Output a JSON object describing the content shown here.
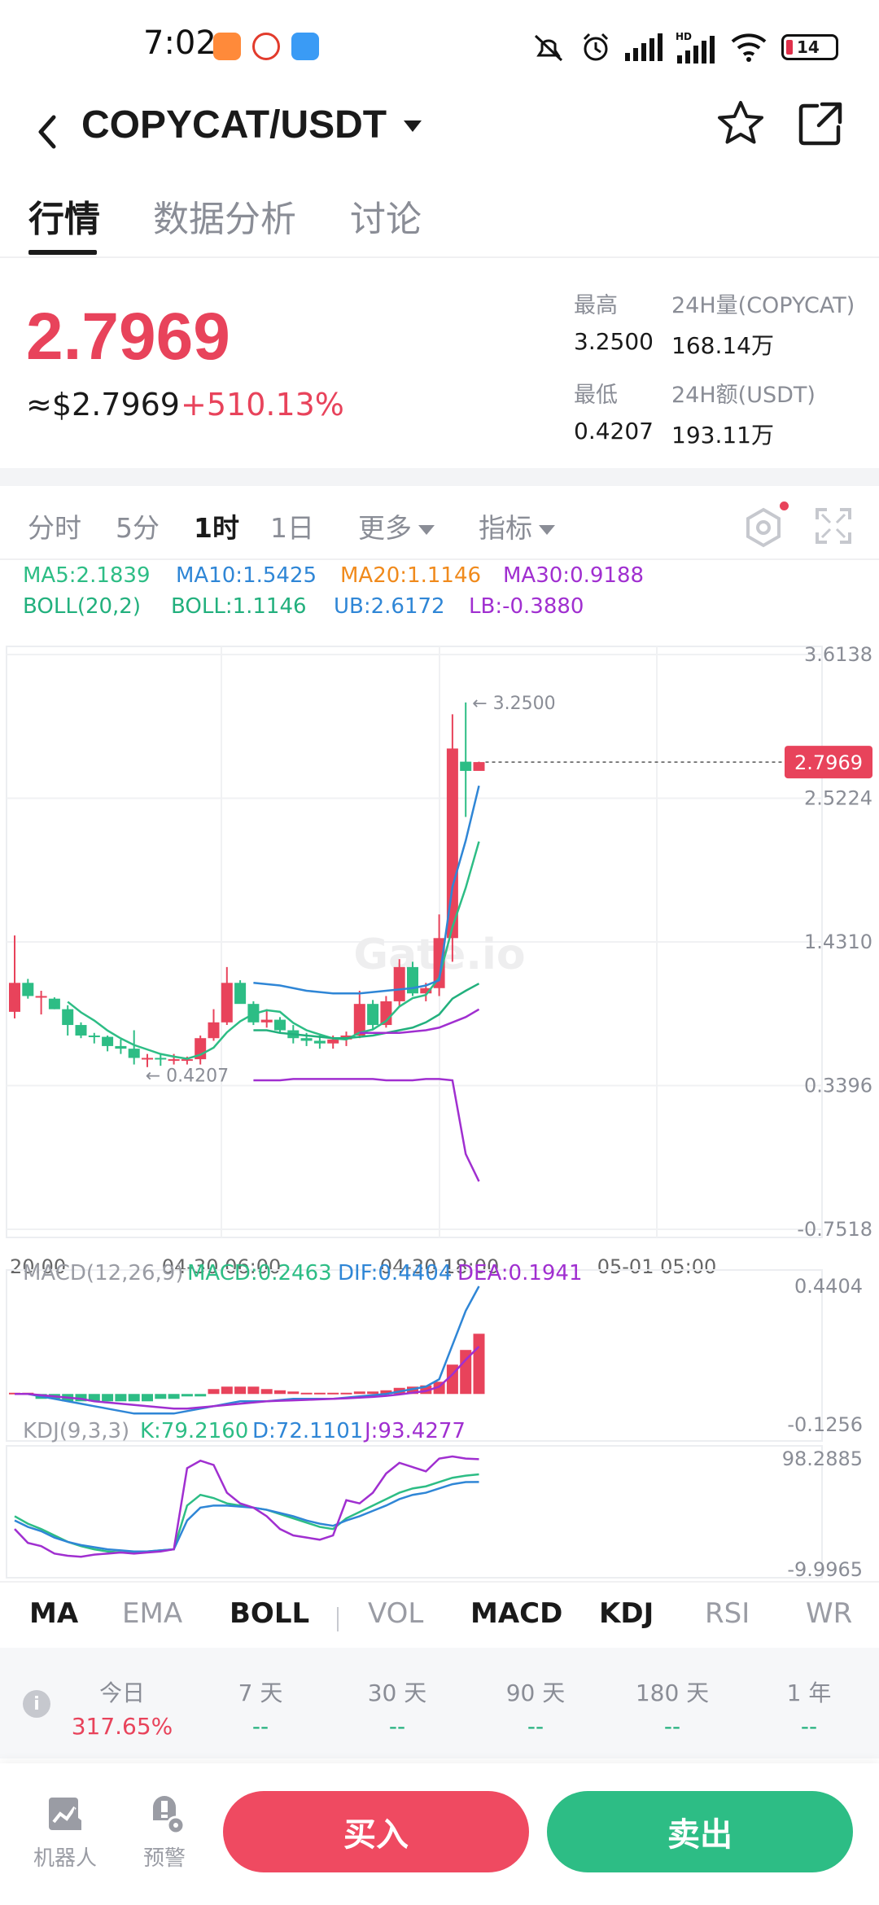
{
  "status_bar": {
    "time": "7:02",
    "battery": "14",
    "network": "HD"
  },
  "header": {
    "pair": "COPYCAT/USDT"
  },
  "tabs": [
    "行情",
    "数据分析",
    "讨论"
  ],
  "summary": {
    "last_price": "2.7969",
    "usd_price": "≈$2.7969",
    "change_pct": "+510.13%",
    "high_label": "最高",
    "high_value": "3.2500",
    "low_label": "最低",
    "low_value": "0.4207",
    "vol_label": "24H量(COPYCAT)",
    "vol_value": "168.14万",
    "amt_label": "24H额(USDT)",
    "amt_value": "193.11万"
  },
  "intervals": {
    "items": [
      "分时",
      "5分",
      "1时",
      "1日"
    ],
    "active": "1时",
    "more": "更多",
    "indicators": "指标"
  },
  "legends": {
    "ma": [
      "MA5:2.1839",
      "MA10:1.5425",
      "MA20:1.1146",
      "MA30:0.9188"
    ],
    "boll": [
      "BOLL(20,2)",
      "BOLL:1.1146",
      "UB:2.6172",
      "LB:-0.3880"
    ],
    "macd": [
      "MACD(12,26,9)",
      "MACD:0.2463",
      "DIF:0.4404",
      "DEA:0.1941"
    ],
    "kdj": [
      "KDJ(9,3,3)",
      "K:79.2160",
      "D:72.1101",
      "J:93.4277"
    ]
  },
  "colors": {
    "up": "#e8435b",
    "down": "#2dbd85",
    "ma5": "#2dbd85",
    "ma10": "#2f86d6",
    "ma20": "#f08a1c",
    "ma30": "#a02fd0",
    "boll": "#22b07d",
    "ub": "#2f86d6",
    "lb": "#a02fd0"
  },
  "chart_data": [
    {
      "type": "candlestick",
      "title": "",
      "watermark": "Gate.io",
      "price_axis_labels": [
        "3.6138",
        "2.5224",
        "1.4310",
        "0.3396",
        "-0.7518"
      ],
      "ylim": [
        -0.7518,
        3.6138
      ],
      "time_labels": [
        "20:00",
        "04-30 06:00",
        "04-30 18:00",
        "05-01 05:00"
      ],
      "current_price_tag": "2.7969",
      "high_marker": "← 3.2500",
      "low_marker": "← 0.4207",
      "candles": [
        {
          "o": 0.9,
          "h": 1.48,
          "l": 0.85,
          "c": 1.12
        },
        {
          "o": 1.12,
          "h": 1.15,
          "l": 1.0,
          "c": 1.02
        },
        {
          "o": 1.02,
          "h": 1.06,
          "l": 0.88,
          "c": 1.02
        },
        {
          "o": 1.0,
          "h": 1.01,
          "l": 0.92,
          "c": 0.92
        },
        {
          "o": 0.92,
          "h": 0.95,
          "l": 0.72,
          "c": 0.8
        },
        {
          "o": 0.8,
          "h": 0.82,
          "l": 0.7,
          "c": 0.72
        },
        {
          "o": 0.72,
          "h": 0.74,
          "l": 0.66,
          "c": 0.71
        },
        {
          "o": 0.71,
          "h": 0.72,
          "l": 0.6,
          "c": 0.64
        },
        {
          "o": 0.64,
          "h": 0.69,
          "l": 0.58,
          "c": 0.62
        },
        {
          "o": 0.62,
          "h": 0.76,
          "l": 0.5,
          "c": 0.55
        },
        {
          "o": 0.55,
          "h": 0.58,
          "l": 0.48,
          "c": 0.55
        },
        {
          "o": 0.55,
          "h": 0.58,
          "l": 0.49,
          "c": 0.54
        },
        {
          "o": 0.54,
          "h": 0.58,
          "l": 0.5,
          "c": 0.54
        },
        {
          "o": 0.54,
          "h": 0.56,
          "l": 0.5,
          "c": 0.54
        },
        {
          "o": 0.54,
          "h": 0.72,
          "l": 0.5,
          "c": 0.7
        },
        {
          "o": 0.7,
          "h": 0.92,
          "l": 0.68,
          "c": 0.82
        },
        {
          "o": 0.82,
          "h": 1.24,
          "l": 0.8,
          "c": 1.12
        },
        {
          "o": 1.12,
          "h": 1.14,
          "l": 1.0,
          "c": 0.96
        },
        {
          "o": 0.96,
          "h": 0.98,
          "l": 0.8,
          "c": 0.82
        },
        {
          "o": 0.82,
          "h": 0.92,
          "l": 0.78,
          "c": 0.84
        },
        {
          "o": 0.84,
          "h": 0.86,
          "l": 0.74,
          "c": 0.76
        },
        {
          "o": 0.76,
          "h": 0.8,
          "l": 0.66,
          "c": 0.7
        },
        {
          "o": 0.7,
          "h": 0.74,
          "l": 0.64,
          "c": 0.68
        },
        {
          "o": 0.68,
          "h": 0.72,
          "l": 0.62,
          "c": 0.66
        },
        {
          "o": 0.66,
          "h": 0.72,
          "l": 0.62,
          "c": 0.69
        },
        {
          "o": 0.69,
          "h": 0.75,
          "l": 0.64,
          "c": 0.72
        },
        {
          "o": 0.72,
          "h": 1.06,
          "l": 0.7,
          "c": 0.96
        },
        {
          "o": 0.96,
          "h": 0.99,
          "l": 0.76,
          "c": 0.8
        },
        {
          "o": 0.8,
          "h": 1.02,
          "l": 0.78,
          "c": 0.98
        },
        {
          "o": 0.98,
          "h": 1.3,
          "l": 0.94,
          "c": 1.24
        },
        {
          "o": 1.24,
          "h": 1.28,
          "l": 1.02,
          "c": 1.04
        },
        {
          "o": 1.04,
          "h": 1.12,
          "l": 0.98,
          "c": 1.08
        },
        {
          "o": 1.08,
          "h": 1.64,
          "l": 1.02,
          "c": 1.46
        },
        {
          "o": 1.46,
          "h": 3.16,
          "l": 1.28,
          "c": 2.9
        },
        {
          "o": 2.8,
          "h": 3.25,
          "l": 2.38,
          "c": 2.73
        },
        {
          "o": 2.73,
          "h": 2.8,
          "l": 2.76,
          "c": 2.7969
        }
      ],
      "boll_start_index": 18,
      "ub": [
        1.12,
        1.11,
        1.1,
        1.08,
        1.06,
        1.05,
        1.04,
        1.04,
        1.04,
        1.05,
        1.06,
        1.07,
        1.08,
        1.1,
        1.14,
        1.85,
        2.2,
        2.6172
      ],
      "lb": [
        0.38,
        0.38,
        0.38,
        0.39,
        0.39,
        0.39,
        0.39,
        0.39,
        0.39,
        0.39,
        0.38,
        0.38,
        0.38,
        0.39,
        0.39,
        0.38,
        -0.18,
        -0.388
      ],
      "boll": [
        0.76,
        0.76,
        0.74,
        0.73,
        0.72,
        0.71,
        0.7,
        0.7,
        0.71,
        0.72,
        0.74,
        0.76,
        0.78,
        0.82,
        0.88,
        1.0,
        1.06,
        1.1146
      ],
      "ma30": [
        0.74,
        0.74,
        0.74,
        0.74,
        0.75,
        0.76,
        0.78,
        0.82,
        0.86,
        0.9188
      ]
    },
    {
      "type": "bar",
      "title": "",
      "axis_labels": [
        "0.4404",
        "-0.1256"
      ],
      "ylim": [
        -0.1256,
        0.4404
      ],
      "macd": [
        0.005,
        0.005,
        -0.02,
        -0.02,
        -0.03,
        -0.03,
        -0.03,
        -0.03,
        -0.03,
        -0.03,
        -0.03,
        -0.02,
        -0.02,
        -0.01,
        -0.01,
        0.02,
        0.03,
        0.03,
        0.03,
        0.02,
        0.015,
        0.01,
        0.005,
        0.005,
        0.005,
        0.005,
        0.01,
        0.01,
        0.015,
        0.025,
        0.03,
        0.035,
        0.05,
        0.12,
        0.18,
        0.2463
      ],
      "dif": [
        0.0,
        0.0,
        -0.01,
        -0.02,
        -0.03,
        -0.04,
        -0.05,
        -0.06,
        -0.07,
        -0.08,
        -0.08,
        -0.08,
        -0.08,
        -0.07,
        -0.06,
        -0.05,
        -0.04,
        -0.03,
        -0.03,
        -0.03,
        -0.025,
        -0.02,
        -0.02,
        -0.02,
        -0.02,
        -0.015,
        -0.01,
        -0.005,
        0.0,
        0.01,
        0.02,
        0.03,
        0.06,
        0.2,
        0.34,
        0.4404
      ],
      "dea": [
        0.0,
        0.0,
        -0.005,
        -0.01,
        -0.015,
        -0.02,
        -0.03,
        -0.035,
        -0.04,
        -0.045,
        -0.05,
        -0.055,
        -0.06,
        -0.06,
        -0.055,
        -0.05,
        -0.045,
        -0.04,
        -0.035,
        -0.03,
        -0.028,
        -0.026,
        -0.024,
        -0.022,
        -0.02,
        -0.018,
        -0.015,
        -0.012,
        -0.008,
        -0.002,
        0.005,
        0.012,
        0.03,
        0.08,
        0.14,
        0.1941
      ]
    },
    {
      "type": "line",
      "title": "",
      "axis_labels": [
        "98.2885",
        "-9.9965"
      ],
      "ylim": [
        -9.9965,
        98.2885
      ],
      "k": [
        40,
        33,
        28,
        22,
        16,
        12,
        9,
        7,
        6,
        6,
        7,
        8,
        9,
        50,
        60,
        57,
        52,
        50,
        48,
        46,
        42,
        38,
        34,
        30,
        28,
        38,
        44,
        50,
        56,
        62,
        66,
        68,
        72,
        76,
        78,
        79.216
      ],
      "d": [
        36,
        30,
        26,
        20,
        16,
        13,
        11,
        9,
        8,
        7,
        7,
        8,
        9,
        36,
        48,
        50,
        50,
        49,
        48,
        46,
        43,
        40,
        36,
        33,
        31,
        36,
        40,
        45,
        50,
        56,
        60,
        62,
        66,
        70,
        72,
        72.1101
      ],
      "j": [
        28,
        15,
        12,
        5,
        3,
        2,
        4,
        5,
        6,
        5,
        6,
        7,
        9,
        85,
        92,
        88,
        62,
        52,
        48,
        40,
        28,
        22,
        20,
        18,
        22,
        55,
        52,
        62,
        80,
        90,
        86,
        82,
        94,
        96,
        94,
        93.4277
      ]
    }
  ],
  "indicator_tabs": {
    "items": [
      "MA",
      "EMA",
      "BOLL",
      "VOL",
      "MACD",
      "KDJ",
      "RSI",
      "WR"
    ],
    "active": [
      "MA",
      "BOLL",
      "MACD",
      "KDJ"
    ]
  },
  "performance": {
    "labels": [
      "今日",
      "7 天",
      "30 天",
      "90 天",
      "180 天",
      "1 年"
    ],
    "values": [
      "317.65%",
      "--",
      "--",
      "--",
      "--",
      "--"
    ]
  },
  "bottom": {
    "robot": "机器人",
    "alert": "预警",
    "buy": "买入",
    "sell": "卖出"
  }
}
